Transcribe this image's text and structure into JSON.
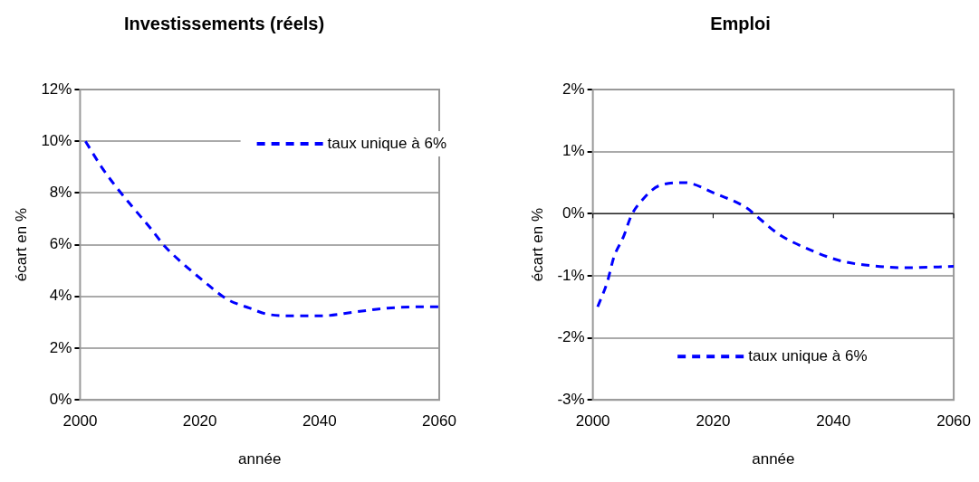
{
  "chart_data": [
    {
      "type": "line",
      "title": "Investissements (réels)",
      "xlabel": "année",
      "ylabel": "écart en %",
      "xlim": [
        2000,
        2060
      ],
      "xticks": [
        2000,
        2020,
        2040,
        2060
      ],
      "ylim": [
        0,
        12
      ],
      "yticks": [
        {
          "value": 0,
          "label": "0%"
        },
        {
          "value": 2,
          "label": "2%"
        },
        {
          "value": 4,
          "label": "4%"
        },
        {
          "value": 6,
          "label": "6%"
        },
        {
          "value": 8,
          "label": "8%"
        },
        {
          "value": 10,
          "label": "10%"
        },
        {
          "value": 12,
          "label": "12%"
        }
      ],
      "grid": "y",
      "legend": "top right",
      "line_style": "dashed",
      "marker": "none",
      "series": [
        {
          "name": "taux unique à 6%",
          "color": "#0000ff",
          "x": [
            2000.9,
            2003.6,
            2005.8,
            2008.8,
            2011.9,
            2014.1,
            2016.8,
            2020.6,
            2024.5,
            2028.3,
            2031.6,
            2036,
            2040.4,
            2045.9,
            2051.4,
            2057.4,
            2060
          ],
          "values": [
            10.0,
            9.0,
            8.3,
            7.45,
            6.6,
            5.95,
            5.35,
            4.6,
            3.9,
            3.55,
            3.3,
            3.25,
            3.25,
            3.4,
            3.55,
            3.6,
            3.6
          ]
        }
      ]
    },
    {
      "type": "line",
      "title": "Emploi",
      "xlabel": "année",
      "ylabel": "écart en %",
      "xlim": [
        2000,
        2060
      ],
      "xticks": [
        2000,
        2020,
        2040,
        2060
      ],
      "ylim": [
        -3,
        2
      ],
      "yticks": [
        {
          "value": -3,
          "label": "-3%"
        },
        {
          "value": -2,
          "label": "-2%"
        },
        {
          "value": -1,
          "label": "-1%"
        },
        {
          "value": 0,
          "label": "0%"
        },
        {
          "value": 1,
          "label": "1%"
        },
        {
          "value": 2,
          "label": "2%"
        }
      ],
      "grid": "y",
      "legend": "bottom",
      "line_style": "dashed",
      "marker": "none",
      "series": [
        {
          "name": "taux unique à 6%",
          "color": "#0000ff",
          "x": [
            2000.8,
            2002.4,
            2003.5,
            2005.1,
            2006.4,
            2008.3,
            2011,
            2015.3,
            2020.2,
            2025.6,
            2027.7,
            2030.9,
            2035.8,
            2041.2,
            2046.5,
            2051.9,
            2060
          ],
          "values": [
            -1.5,
            -1.1,
            -0.7,
            -0.37,
            -0.03,
            0.23,
            0.45,
            0.5,
            0.33,
            0.09,
            -0.08,
            -0.33,
            -0.57,
            -0.76,
            -0.84,
            -0.87,
            -0.85
          ]
        }
      ]
    }
  ]
}
